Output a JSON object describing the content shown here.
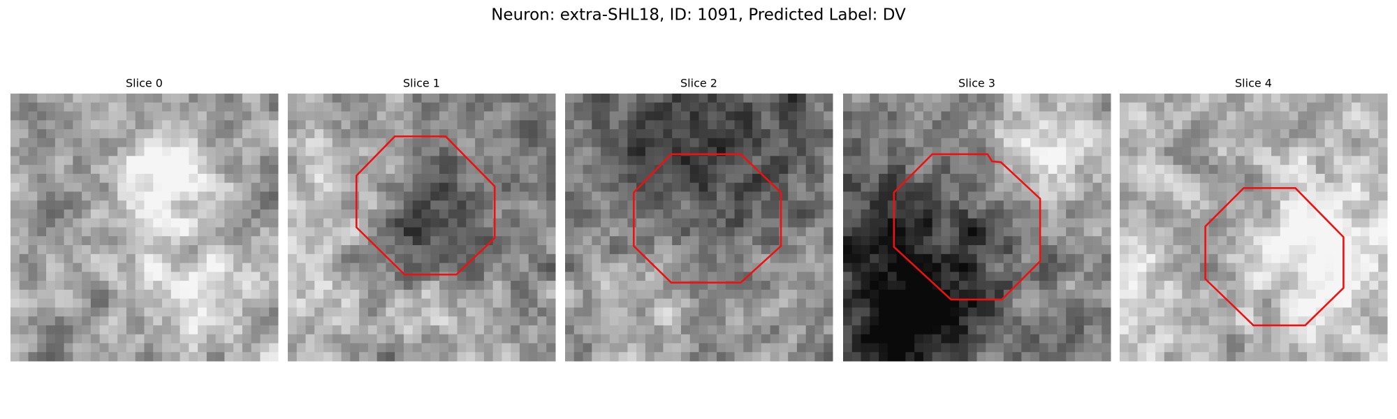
{
  "title": "Neuron: extra-SHL18, ID: 1091, Predicted Label: DV",
  "panels": [
    {
      "title": "Slice 0"
    },
    {
      "title": "Slice 1"
    },
    {
      "title": "Slice 2"
    },
    {
      "title": "Slice 3"
    },
    {
      "title": "Slice 4"
    }
  ]
}
